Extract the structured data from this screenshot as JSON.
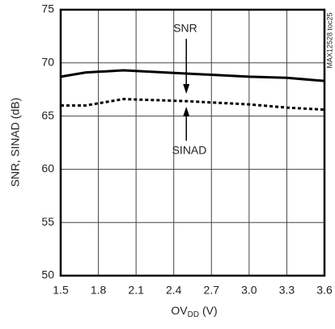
{
  "chart_data": {
    "type": "line",
    "ylabel": "SNR, SINAD (dB)",
    "xlabel_parts": [
      "OV",
      "DD",
      " (V)"
    ],
    "side_note": "MAX12528 toc25",
    "x": [
      1.5,
      1.7,
      2.0,
      2.5,
      3.0,
      3.3,
      3.6
    ],
    "series": [
      {
        "name": "SNR",
        "color": "#000000",
        "dash": "solid",
        "values": [
          68.7,
          69.1,
          69.3,
          69.0,
          68.7,
          68.6,
          68.3
        ]
      },
      {
        "name": "SINAD",
        "color": "#000000",
        "dash": "dotted",
        "values": [
          66.0,
          66.0,
          66.6,
          66.4,
          66.1,
          65.8,
          65.6
        ]
      }
    ],
    "xlim": [
      1.5,
      3.6
    ],
    "xticks": [
      1.5,
      1.8,
      2.1,
      2.4,
      2.7,
      {
        "value": 3.0,
        "label": "3.0"
      },
      3.3,
      3.6
    ],
    "ylim": [
      50,
      75
    ],
    "yticks": [
      50,
      55,
      60,
      65,
      70,
      75
    ],
    "grid": true
  }
}
